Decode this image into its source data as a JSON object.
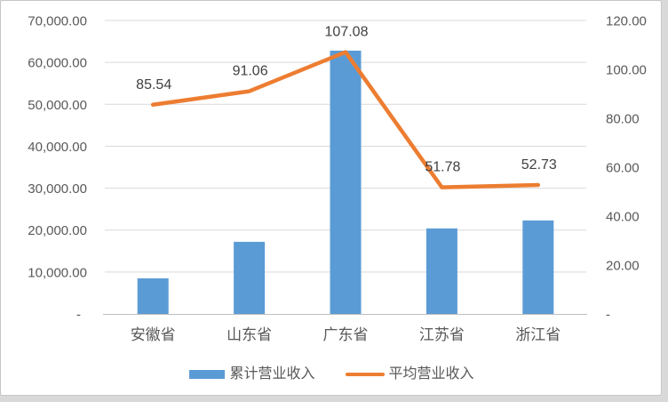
{
  "chart_data": {
    "type": "combo",
    "title": "",
    "categories": [
      "安徽省",
      "山东省",
      "广东省",
      "江苏省",
      "浙江省"
    ],
    "series": [
      {
        "name": "累计营业收入",
        "type": "bar",
        "axis": "left",
        "color": "#5B9BD5",
        "values": [
          8500,
          17200,
          62800,
          20400,
          22300
        ]
      },
      {
        "name": "平均营业收入",
        "type": "line",
        "axis": "right",
        "color": "#ED7D31",
        "values": [
          85.54,
          91.06,
          107.08,
          51.78,
          52.73
        ],
        "data_labels": [
          "85.54",
          "91.06",
          "107.08",
          "51.78",
          "52.73"
        ]
      }
    ],
    "left_axis": {
      "min": 0,
      "max": 70000,
      "step": 10000,
      "tick_labels": [
        "70,000.00",
        "60,000.00",
        "50,000.00",
        "40,000.00",
        "30,000.00",
        "20,000.00",
        "10,000.00",
        "-"
      ]
    },
    "right_axis": {
      "min": 0,
      "max": 120,
      "step": 20,
      "tick_labels": [
        "120.00",
        "100.00",
        "80.00",
        "60.00",
        "40.00",
        "20.00",
        "-"
      ]
    },
    "legend": {
      "position": "bottom"
    },
    "grid": true,
    "colors": {
      "gridline": "#D9D9D9",
      "axis_line": "#BFBFBF",
      "tick_text": "#595959",
      "category_text": "#595959",
      "data_label_text": "#404040",
      "background": "#FFFFFF"
    }
  }
}
